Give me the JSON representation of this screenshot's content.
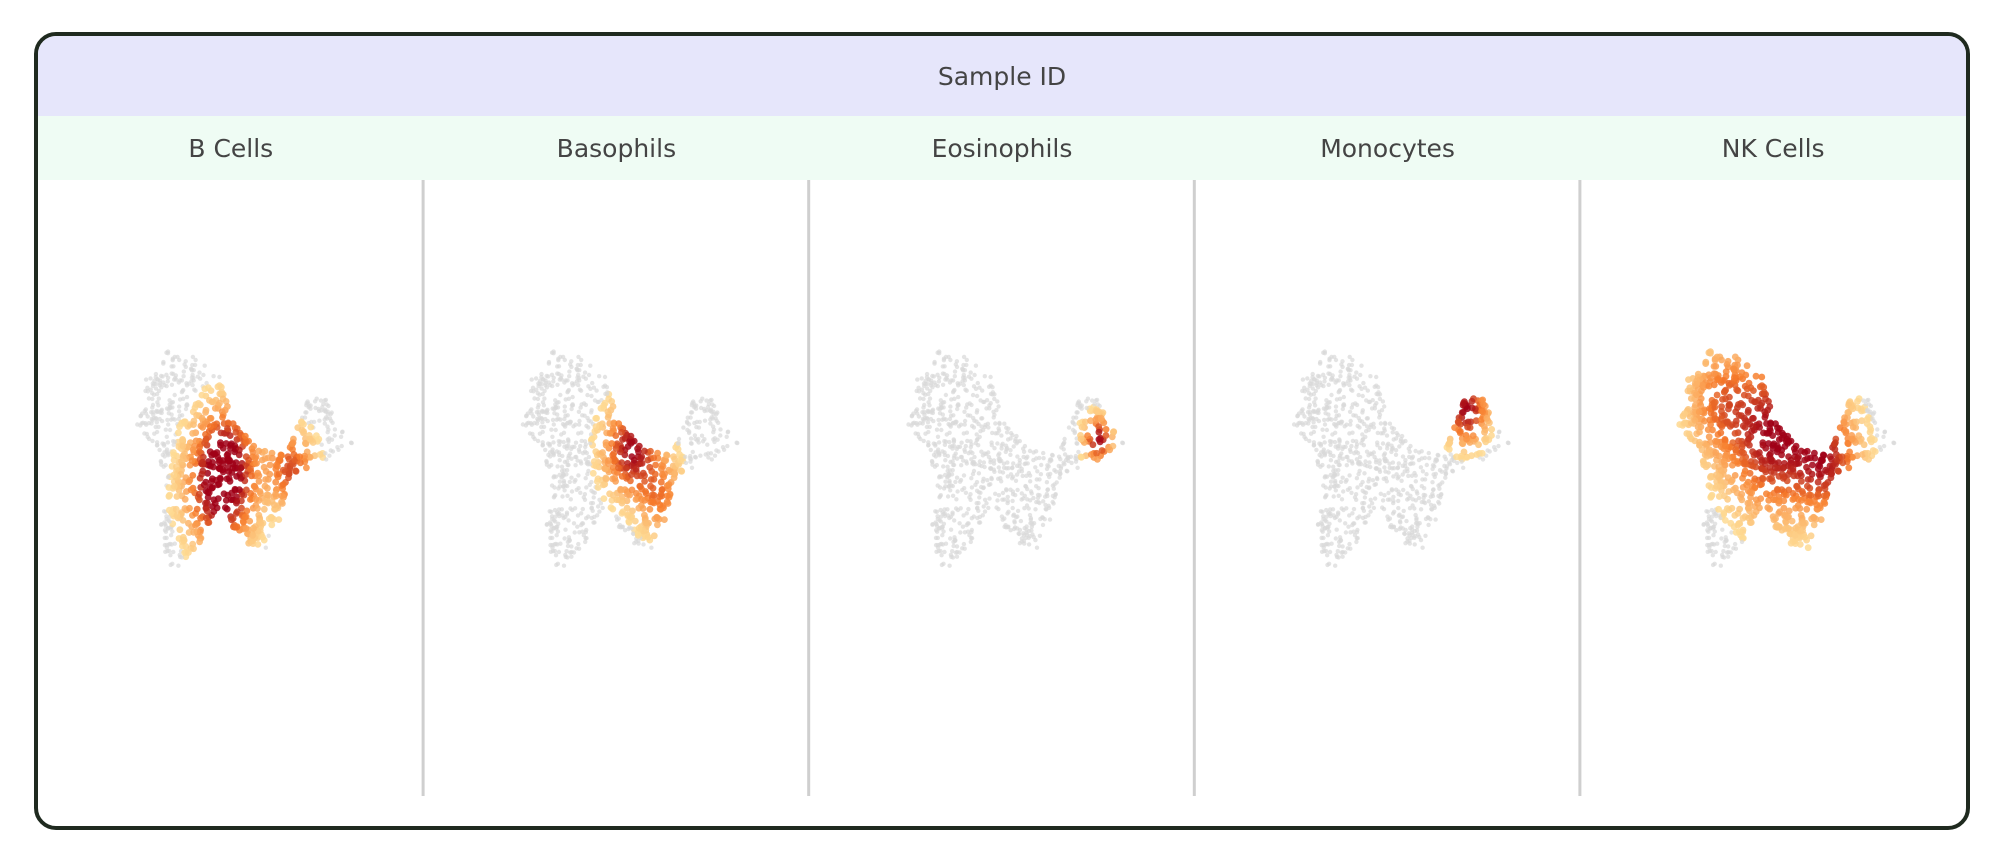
{
  "header": {
    "title": "Sample ID"
  },
  "chart_data": {
    "type": "heatmap",
    "description_kind": "faceted density embedding",
    "facets": [
      {
        "label": "B Cells",
        "hotspots": [
          {
            "u": 0.3,
            "v": 0.55,
            "s": 0.1,
            "w": 1.0
          },
          {
            "u": 0.32,
            "v": 0.3,
            "s": 0.09,
            "w": 0.8
          },
          {
            "u": 0.63,
            "v": 0.4,
            "s": 0.07,
            "w": 0.7
          }
        ]
      },
      {
        "label": "Basophils",
        "hotspots": [
          {
            "u": 0.42,
            "v": 0.28,
            "s": 0.08,
            "w": 1.0
          },
          {
            "u": 0.55,
            "v": 0.55,
            "s": 0.07,
            "w": 0.5
          }
        ]
      },
      {
        "label": "Eosinophils",
        "hotspots": [
          {
            "u": 0.8,
            "v": 0.22,
            "s": 0.04,
            "w": 1.0
          }
        ]
      },
      {
        "label": "Monocytes",
        "hotspots": [
          {
            "u": 0.72,
            "v": 0.05,
            "s": 0.06,
            "w": 1.0
          }
        ]
      },
      {
        "label": "NK Cells",
        "hotspots": [
          {
            "u": 0.35,
            "v": 0.2,
            "s": 0.14,
            "w": 1.0
          },
          {
            "u": 0.6,
            "v": 0.35,
            "s": 0.1,
            "w": 0.8
          },
          {
            "u": 0.1,
            "v": 0.0,
            "s": 0.1,
            "w": 0.5
          }
        ]
      }
    ],
    "colors": {
      "background_points": "#d9d9d9",
      "low": "#ffe6a0",
      "mid": "#f77b2a",
      "high": "#a00016",
      "divider": "#cfcfcf"
    }
  }
}
